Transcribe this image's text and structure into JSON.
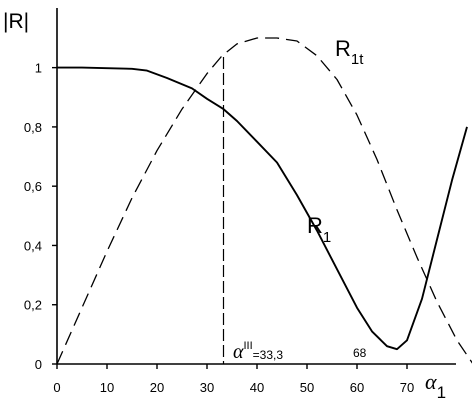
{
  "chart_data": {
    "type": "line",
    "ylabel": "|R|",
    "xlabel": "α",
    "xlabel_subscript": "1",
    "xlim": [
      0,
      84
    ],
    "ylim": [
      0,
      1.1
    ],
    "xticks": [
      0,
      10,
      20,
      30,
      40,
      50,
      60,
      70
    ],
    "xtick_labels": [
      "0",
      "10",
      "20",
      "30",
      "40",
      "50",
      "60",
      "70"
    ],
    "yticks": [
      0,
      0.2,
      0.4,
      0.6,
      0.8,
      1
    ],
    "ytick_labels": [
      "0",
      "0,2",
      "0,4",
      "0,6",
      "0,8",
      "1"
    ],
    "grid": false,
    "series": [
      {
        "name": "R",
        "name_subscript": "1",
        "style": "solid",
        "color": "#000000",
        "x": [
          0,
          5,
          10,
          15,
          18,
          22,
          27,
          30,
          33.3,
          36,
          40,
          44,
          48,
          52,
          56,
          60,
          63,
          66,
          68,
          70,
          73,
          76,
          79,
          82
        ],
        "y": [
          1.0,
          1.0,
          0.998,
          0.996,
          0.99,
          0.965,
          0.93,
          0.895,
          0.86,
          0.82,
          0.75,
          0.68,
          0.57,
          0.45,
          0.32,
          0.19,
          0.11,
          0.06,
          0.05,
          0.08,
          0.22,
          0.42,
          0.62,
          0.8
        ]
      },
      {
        "name": "R",
        "name_subscript": "1t",
        "style": "dashed",
        "color": "#000000",
        "x": [
          0,
          5,
          10,
          15,
          20,
          25,
          30,
          33,
          36,
          40,
          44,
          48,
          52,
          56,
          60,
          64,
          68,
          72,
          76,
          80,
          84
        ],
        "y": [
          0,
          0.19,
          0.38,
          0.56,
          0.72,
          0.86,
          0.98,
          1.04,
          1.08,
          1.1,
          1.1,
          1.09,
          1.04,
          0.96,
          0.84,
          0.69,
          0.52,
          0.36,
          0.21,
          0.08,
          -0.02
        ]
      }
    ],
    "annotations": {
      "vline_x": 33.3,
      "alpha_label": "α",
      "alpha_superscript": "III",
      "alpha_value": "=33,3",
      "min_label": "68"
    }
  }
}
